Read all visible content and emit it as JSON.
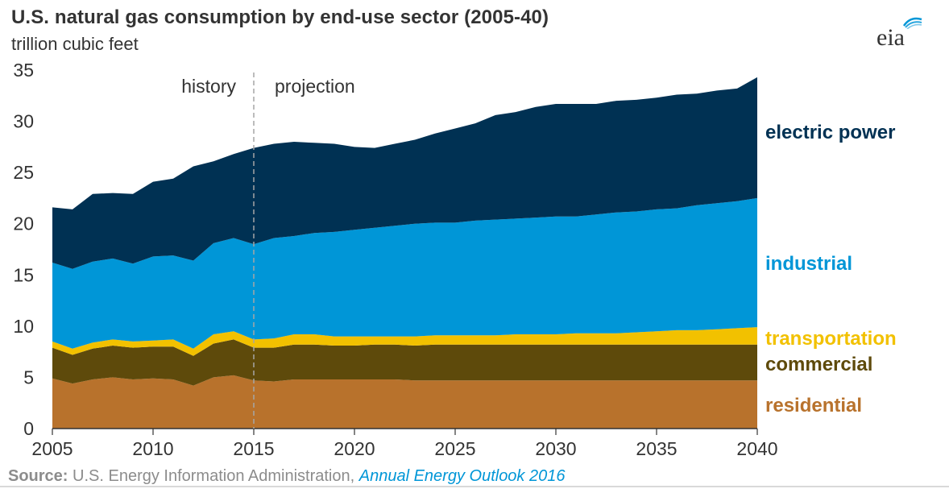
{
  "header": {
    "title": "U.S. natural gas consumption  by end-use sector  (2005-40)",
    "subtitle": "trillion  cubic feet",
    "logo": "eia"
  },
  "source": {
    "label": "Source:",
    "text": " U.S. Energy Information Administration, ",
    "publication": "Annual Energy Outlook 2016"
  },
  "colors": {
    "residential": "#b8722c",
    "commercial": "#5e4a0b",
    "transportation": "#f2c100",
    "industrial": "#0096d7",
    "electric_power": "#003153",
    "axis_text": "#333333",
    "divider": "#a6a6a6"
  },
  "chart_data": {
    "type": "area",
    "stacked": true,
    "x": [
      2005,
      2006,
      2007,
      2008,
      2009,
      2010,
      2011,
      2012,
      2013,
      2014,
      2015,
      2016,
      2017,
      2018,
      2019,
      2020,
      2021,
      2022,
      2023,
      2024,
      2025,
      2026,
      2027,
      2028,
      2029,
      2030,
      2031,
      2032,
      2033,
      2034,
      2035,
      2036,
      2037,
      2038,
      2039,
      2040
    ],
    "series": [
      {
        "name": "residential",
        "values": [
          4.9,
          4.4,
          4.8,
          5.0,
          4.8,
          4.9,
          4.8,
          4.2,
          5.0,
          5.2,
          4.7,
          4.6,
          4.8,
          4.8,
          4.8,
          4.8,
          4.8,
          4.8,
          4.7,
          4.7,
          4.7,
          4.7,
          4.7,
          4.7,
          4.7,
          4.7,
          4.7,
          4.7,
          4.7,
          4.7,
          4.7,
          4.7,
          4.7,
          4.7,
          4.7,
          4.7
        ]
      },
      {
        "name": "commercial",
        "values": [
          3.0,
          2.8,
          3.0,
          3.1,
          3.1,
          3.1,
          3.2,
          2.9,
          3.3,
          3.5,
          3.2,
          3.3,
          3.4,
          3.4,
          3.3,
          3.3,
          3.4,
          3.4,
          3.4,
          3.5,
          3.5,
          3.5,
          3.5,
          3.5,
          3.5,
          3.5,
          3.5,
          3.5,
          3.5,
          3.5,
          3.5,
          3.5,
          3.5,
          3.5,
          3.5,
          3.5
        ]
      },
      {
        "name": "transportation",
        "values": [
          0.6,
          0.6,
          0.6,
          0.6,
          0.6,
          0.6,
          0.7,
          0.7,
          0.9,
          0.8,
          0.8,
          0.9,
          1.0,
          1.0,
          0.9,
          0.9,
          0.8,
          0.8,
          0.9,
          0.9,
          0.9,
          0.9,
          0.9,
          1.0,
          1.0,
          1.0,
          1.1,
          1.1,
          1.1,
          1.2,
          1.3,
          1.4,
          1.4,
          1.5,
          1.6,
          1.7
        ]
      },
      {
        "name": "industrial",
        "values": [
          7.7,
          7.8,
          7.9,
          7.9,
          7.6,
          8.2,
          8.2,
          8.6,
          8.9,
          9.1,
          9.3,
          9.8,
          9.6,
          9.9,
          10.2,
          10.4,
          10.6,
          10.8,
          11.0,
          11.0,
          11.0,
          11.2,
          11.3,
          11.3,
          11.4,
          11.5,
          11.4,
          11.6,
          11.8,
          11.8,
          11.9,
          11.9,
          12.2,
          12.3,
          12.4,
          12.6
        ]
      },
      {
        "name": "electric power",
        "values": [
          5.4,
          5.8,
          6.6,
          6.4,
          6.8,
          7.3,
          7.5,
          9.2,
          8.0,
          8.2,
          9.4,
          9.2,
          9.2,
          8.8,
          8.6,
          8.1,
          7.8,
          8.0,
          8.2,
          8.7,
          9.2,
          9.5,
          10.2,
          10.4,
          10.8,
          11.0,
          11.0,
          10.8,
          10.9,
          10.9,
          10.9,
          11.1,
          10.9,
          11.0,
          11.0,
          11.8
        ]
      }
    ],
    "xlim": [
      2005,
      2040
    ],
    "ylim": [
      0,
      35
    ],
    "x_ticks": [
      "2005",
      "2010",
      "2015",
      "2020",
      "2025",
      "2030",
      "2035",
      "2040"
    ],
    "y_ticks": [
      "0",
      "5",
      "10",
      "15",
      "20",
      "25",
      "30",
      "35"
    ],
    "annotations": {
      "history": "history",
      "projection": "projection",
      "divider_x": 2015
    },
    "legend_placement": "right, inline labels",
    "grid": false
  }
}
